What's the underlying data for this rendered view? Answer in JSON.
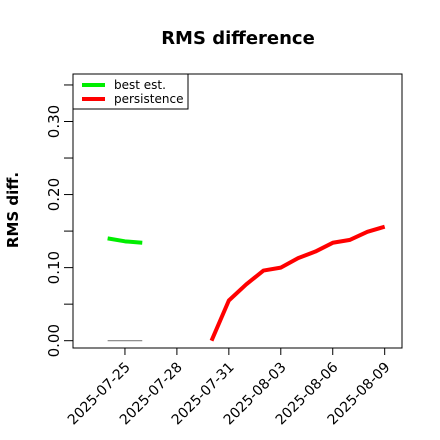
{
  "chart_data": {
    "type": "line",
    "title": "RMS difference",
    "xlabel": "",
    "ylabel": "RMS diff.",
    "x_ticks": [
      "2025-07-25",
      "2025-07-28",
      "2025-07-31",
      "2025-08-03",
      "2025-08-06",
      "2025-08-09"
    ],
    "y_ticks": [
      "0.00",
      "0.10",
      "0.20",
      "0.30"
    ],
    "ylim": [
      -0.01,
      0.365
    ],
    "xlim": [
      "2025-07-22",
      "2025-08-10"
    ],
    "grid": false,
    "legend_placement": "top-left",
    "series": [
      {
        "name": "best est.",
        "color": "#00ee00",
        "x": [
          "2025-07-24",
          "2025-07-25",
          "2025-07-26"
        ],
        "y": [
          0.14,
          0.136,
          0.134
        ]
      },
      {
        "name": "persistence",
        "color": "#ff0000",
        "x": [
          "2025-07-30",
          "2025-07-31",
          "2025-08-01",
          "2025-08-02",
          "2025-08-03",
          "2025-08-04",
          "2025-08-05",
          "2025-08-06",
          "2025-08-07",
          "2025-08-08",
          "2025-08-09"
        ],
        "y": [
          0.0,
          0.055,
          0.077,
          0.096,
          0.1,
          0.113,
          0.122,
          0.134,
          0.138,
          0.149,
          0.156
        ]
      }
    ],
    "reference_line": {
      "color": "#808080",
      "x": [
        "2025-07-24",
        "2025-07-26"
      ],
      "y": [
        0.0,
        0.0
      ]
    }
  }
}
